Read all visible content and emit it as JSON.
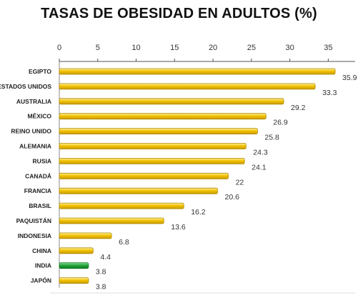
{
  "chart_data": {
    "type": "bar",
    "orientation": "horizontal",
    "title": "TASAS DE OBESIDAD EN ADULTOS (%)",
    "categories": [
      "EGIPTO",
      "ESTADOS UNIDOS",
      "AUSTRALIA",
      "MÉXICO",
      "REINO UNIDO",
      "ALEMANIA",
      "RUSIA",
      "CANADÁ",
      "FRANCIA",
      "BRASIL",
      "PAQUISTÁN",
      "INDONESIA",
      "CHINA",
      "INDIA",
      "JAPÓN"
    ],
    "values": [
      35.9,
      33.3,
      29.2,
      26.9,
      25.8,
      24.3,
      24.1,
      22,
      20.6,
      16.2,
      13.6,
      6.8,
      4.4,
      3.8,
      3.8
    ],
    "value_labels": [
      "35.9",
      "33.3",
      "29.2",
      "26.9",
      "25.8",
      "24.3",
      "24.1",
      "22",
      "20.6",
      "16.2",
      "13.6",
      "6.8",
      "4.4",
      "3.8",
      "3.8"
    ],
    "xticks": [
      0,
      5,
      10,
      15,
      20,
      25,
      30,
      35
    ],
    "xlim": [
      0,
      38.5
    ],
    "xaxis_position": "top",
    "grid": false,
    "colors": {
      "default": "#f2c200",
      "default_edge": "#b08a00",
      "highlight": "#22a33a",
      "highlight_edge": "#137a24"
    },
    "highlight_category": "INDIA"
  }
}
